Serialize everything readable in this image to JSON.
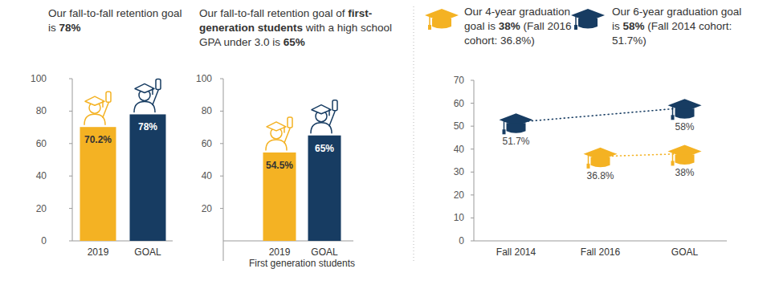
{
  "chart_data": [
    {
      "type": "bar",
      "title": [
        "Our fall-to-fall retention goal is ",
        "78%"
      ],
      "categories": [
        "2019",
        "GOAL"
      ],
      "values": [
        70.2,
        78
      ],
      "value_labels": [
        "70.2%",
        "78%"
      ],
      "colors": [
        "#f4b223",
        "#173c62"
      ],
      "ylim": [
        0,
        100
      ],
      "yticks": [
        0,
        20,
        40,
        60,
        80,
        100
      ],
      "grid": false,
      "data_labels": true
    },
    {
      "type": "bar",
      "title": [
        "Our fall-to-fall retention goal of ",
        "first-generation students",
        " with a high school GPA under 3.0 is ",
        "65%"
      ],
      "x_label": "First generation students",
      "categories": [
        "2019",
        "GOAL"
      ],
      "values": [
        54.5,
        65
      ],
      "value_labels": [
        "54.5%",
        "65%"
      ],
      "colors": [
        "#f4b223",
        "#173c62"
      ],
      "ylim": [
        0,
        100
      ],
      "yticks": [
        20,
        40,
        60,
        80,
        100
      ],
      "grid": false,
      "data_labels": true
    },
    {
      "type": "line",
      "categories": [
        "Fall 2014",
        "Fall 2016",
        "GOAL"
      ],
      "series": [
        {
          "name": "Our 4-year graduation goal is 38% (Fall 2016 cohort: 36.8%)",
          "color": "#f4b223",
          "x": [
            "Fall 2016",
            "GOAL"
          ],
          "values": [
            36.8,
            38
          ],
          "value_labels": [
            "36.8%",
            "38%"
          ]
        },
        {
          "name": "Our 6-year graduation goal is 58% (Fall 2014 cohort: 51.7%)",
          "color": "#173c62",
          "x": [
            "Fall 2014",
            "GOAL"
          ],
          "values": [
            51.7,
            58
          ],
          "value_labels": [
            "51.7%",
            "58%"
          ]
        }
      ],
      "ylim": [
        0,
        70
      ],
      "yticks": [
        0,
        10,
        20,
        30,
        40,
        50,
        60,
        70
      ],
      "grid": false,
      "data_labels": true,
      "marker": "hat",
      "line_style": "dotted"
    }
  ]
}
